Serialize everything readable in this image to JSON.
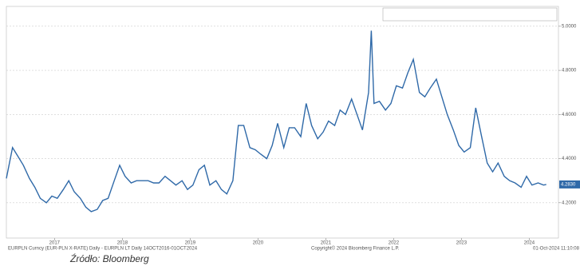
{
  "chart_data": {
    "type": "line",
    "series": [
      {
        "name": "EUR-PLN X-RATE - Last Price 4.2830",
        "color": "#2f69a8",
        "x": [
          2016.79,
          2016.88,
          2016.96,
          2017.04,
          2017.13,
          2017.21,
          2017.29,
          2017.38,
          2017.46,
          2017.54,
          2017.63,
          2017.71,
          2017.79,
          2017.88,
          2017.96,
          2018.04,
          2018.13,
          2018.21,
          2018.29,
          2018.38,
          2018.46,
          2018.54,
          2018.63,
          2018.71,
          2018.79,
          2018.88,
          2018.96,
          2019.04,
          2019.13,
          2019.21,
          2019.29,
          2019.38,
          2019.46,
          2019.54,
          2019.63,
          2019.71,
          2019.79,
          2019.88,
          2019.96,
          2020.04,
          2020.13,
          2020.21,
          2020.29,
          2020.38,
          2020.46,
          2020.54,
          2020.63,
          2020.71,
          2020.79,
          2020.88,
          2020.96,
          2021.04,
          2021.13,
          2021.21,
          2021.29,
          2021.38,
          2021.46,
          2021.54,
          2021.63,
          2021.71,
          2021.79,
          2021.88,
          2021.96,
          2022.04,
          2022.13,
          2022.17,
          2022.21,
          2022.29,
          2022.38,
          2022.46,
          2022.54,
          2022.63,
          2022.71,
          2022.79,
          2022.88,
          2022.96,
          2023.04,
          2023.13,
          2023.21,
          2023.29,
          2023.38,
          2023.46,
          2023.54,
          2023.63,
          2023.71,
          2023.79,
          2023.88,
          2023.96,
          2024.04,
          2024.13,
          2024.21,
          2024.29,
          2024.38,
          2024.46,
          2024.54,
          2024.63,
          2024.71,
          2024.75
        ],
        "values": [
          4.31,
          4.45,
          4.41,
          4.37,
          4.31,
          4.27,
          4.22,
          4.2,
          4.23,
          4.22,
          4.26,
          4.3,
          4.25,
          4.22,
          4.18,
          4.16,
          4.17,
          4.21,
          4.22,
          4.3,
          4.37,
          4.32,
          4.29,
          4.3,
          4.3,
          4.3,
          4.29,
          4.29,
          4.32,
          4.3,
          4.28,
          4.3,
          4.26,
          4.28,
          4.35,
          4.37,
          4.28,
          4.3,
          4.26,
          4.24,
          4.3,
          4.55,
          4.55,
          4.45,
          4.44,
          4.42,
          4.4,
          4.46,
          4.56,
          4.45,
          4.54,
          4.54,
          4.5,
          4.65,
          4.55,
          4.49,
          4.52,
          4.57,
          4.55,
          4.62,
          4.6,
          4.67,
          4.6,
          4.53,
          4.7,
          4.98,
          4.65,
          4.66,
          4.62,
          4.65,
          4.73,
          4.72,
          4.79,
          4.85,
          4.7,
          4.68,
          4.72,
          4.76,
          4.68,
          4.6,
          4.53,
          4.46,
          4.43,
          4.45,
          4.63,
          4.51,
          4.38,
          4.34,
          4.38,
          4.32,
          4.3,
          4.29,
          4.27,
          4.32,
          4.28,
          4.29,
          4.28,
          4.283
        ],
        "last_price": {
          "value": 4.283,
          "label": "4.2830"
        }
      }
    ],
    "xlim": [
      2016.79,
      2024.93
    ],
    "xticks": [
      {
        "value": 2017.5,
        "label": "2017"
      },
      {
        "value": 2018.5,
        "label": "2018"
      },
      {
        "value": 2019.5,
        "label": "2019"
      },
      {
        "value": 2020.5,
        "label": "2020"
      },
      {
        "value": 2021.5,
        "label": "2021"
      },
      {
        "value": 2022.5,
        "label": "2022"
      },
      {
        "value": 2023.5,
        "label": "2023"
      },
      {
        "value": 2024.5,
        "label": "2024"
      }
    ],
    "ylim": [
      4.04,
      5.09
    ],
    "yticks": [
      {
        "value": 4.2,
        "label": "4.2000"
      },
      {
        "value": 4.4,
        "label": "4.4000"
      },
      {
        "value": 4.6,
        "label": "4.6000"
      },
      {
        "value": 4.8,
        "label": "4.8000"
      },
      {
        "value": 5.0,
        "label": "5.0000"
      }
    ],
    "grid": true,
    "footer_left": "EURPLN Curncy (EUR-PLN X-RATE) Daily - EURPLN LT Daily 14OCT2016-01OCT2024",
    "footer_center": "Copyright© 2024 Bloomberg Finance L.P.",
    "footer_right": "01-Oct-2024 11:10:08",
    "source": "Źródło: Bloomberg"
  }
}
